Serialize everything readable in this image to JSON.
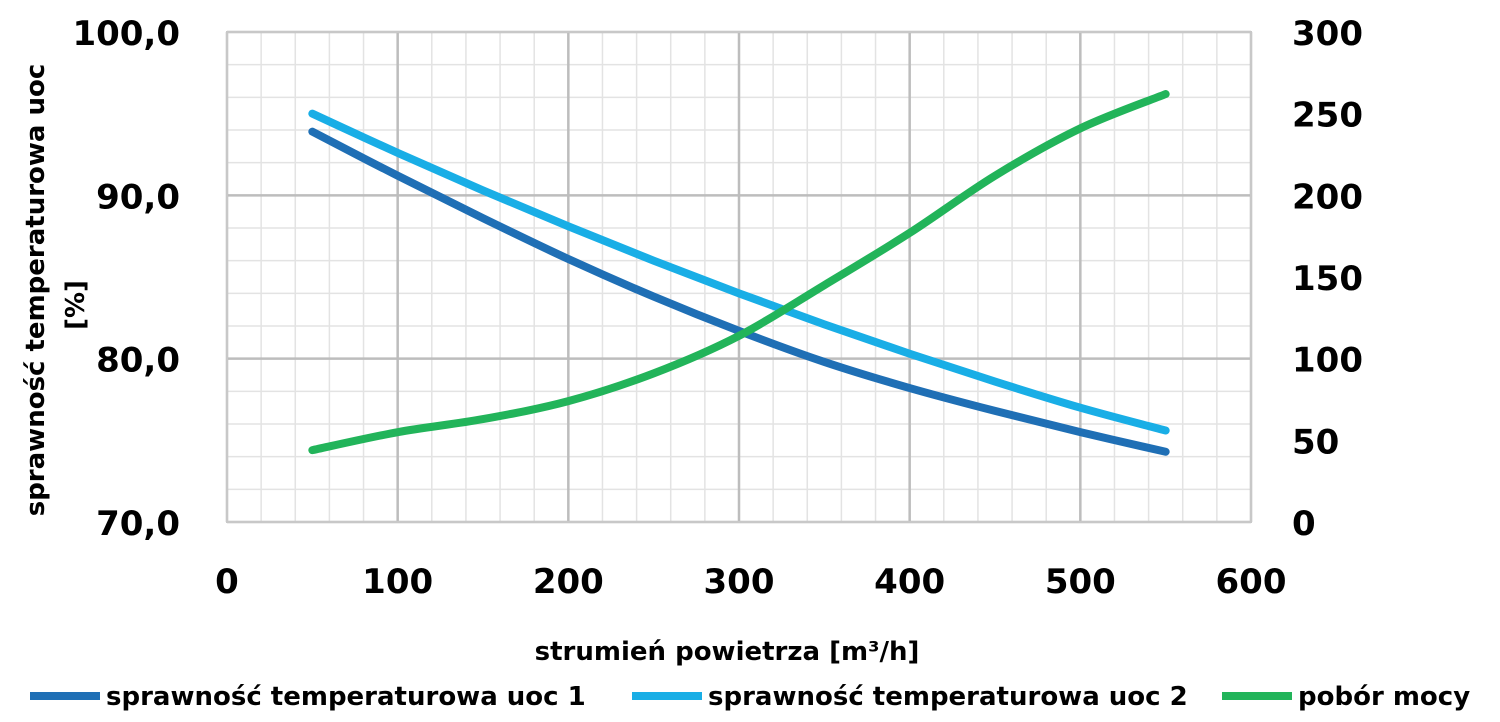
{
  "chart_data": {
    "type": "line",
    "xlabel": "strumień powietrza [m³/h]",
    "ylabel": "sprawność temperaturowa uoc [%]",
    "ylabel_line1": "sprawność temperaturowa uoc",
    "ylabel_line2": "[%]",
    "xlim": [
      0,
      600
    ],
    "ylim": [
      70.0,
      100.0
    ],
    "y2lim": [
      0,
      300
    ],
    "x_ticks": [
      "0",
      "100",
      "200",
      "300",
      "400",
      "500",
      "600"
    ],
    "y_ticks": [
      "70,0",
      "80,0",
      "90,0",
      "100,0"
    ],
    "y2_ticks": [
      "0",
      "50",
      "100",
      "150",
      "200",
      "250",
      "300"
    ],
    "grid": true,
    "legend_position": "bottom",
    "series": [
      {
        "name": "sprawność temperaturowa uoc 1",
        "axis": "left",
        "color": "#1f6fb5",
        "x": [
          50,
          100,
          150,
          200,
          250,
          300,
          350,
          400,
          450,
          500,
          550
        ],
        "y": [
          93.9,
          91.2,
          88.6,
          86.1,
          83.8,
          81.7,
          79.8,
          78.2,
          76.8,
          75.5,
          74.3
        ]
      },
      {
        "name": "sprawność temperaturowa uoc 2",
        "axis": "left",
        "color": "#19aee6",
        "x": [
          50,
          100,
          150,
          200,
          250,
          300,
          350,
          400,
          450,
          500,
          550
        ],
        "y": [
          95.0,
          92.6,
          90.3,
          88.1,
          86.0,
          84.0,
          82.1,
          80.3,
          78.6,
          77.0,
          75.6
        ]
      },
      {
        "name": "pobór mocy",
        "axis": "right",
        "color": "#22b45a",
        "x": [
          50,
          100,
          150,
          200,
          250,
          300,
          350,
          400,
          450,
          500,
          550
        ],
        "y": [
          44,
          55,
          63,
          74,
          91,
          114,
          145,
          177,
          212,
          241,
          262
        ]
      }
    ]
  }
}
